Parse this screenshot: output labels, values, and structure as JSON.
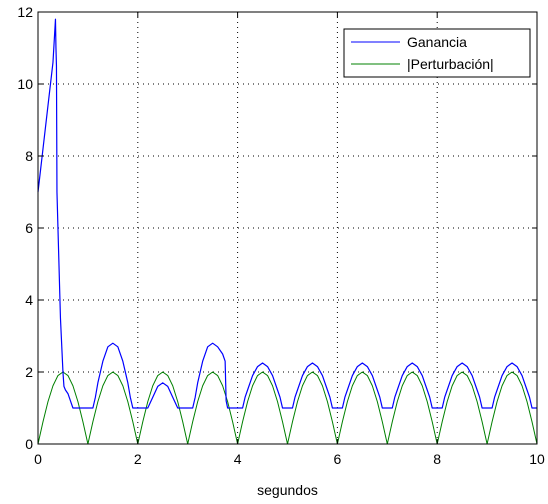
{
  "chart_data": {
    "type": "line",
    "title": "",
    "xlabel": "segundos",
    "ylabel": "",
    "xlim": [
      0,
      10
    ],
    "ylim": [
      0,
      12
    ],
    "x_ticks": [
      "0",
      "2",
      "4",
      "6",
      "8",
      "10"
    ],
    "y_ticks": [
      "0",
      "2",
      "4",
      "6",
      "8",
      "10",
      "12"
    ],
    "grid": true,
    "legend_position": "top-right",
    "series": [
      {
        "name": "Ganancia",
        "color": "#0000ff",
        "x": [
          0,
          0.1,
          0.2,
          0.3,
          0.35,
          0.36,
          0.37,
          0.38,
          0.45,
          0.5,
          0.52,
          0.55,
          0.6,
          0.65,
          0.7,
          0.75,
          0.8,
          0.9,
          1.0,
          1.1,
          1.15,
          1.2,
          1.3,
          1.4,
          1.5,
          1.6,
          1.7,
          1.8,
          1.85,
          1.9,
          2.0,
          2.1,
          2.15,
          2.2,
          2.3,
          2.4,
          2.5,
          2.6,
          2.7,
          2.8,
          2.85,
          2.9,
          3.0,
          3.1,
          3.15,
          3.2,
          3.3,
          3.4,
          3.5,
          3.6,
          3.7,
          3.75,
          3.77,
          3.8,
          3.9,
          4.0,
          4.1,
          4.15,
          4.2,
          4.3,
          4.4,
          4.5,
          4.6,
          4.7,
          4.8,
          4.85,
          4.9,
          5.0,
          5.1,
          5.15,
          5.2,
          5.3,
          5.4,
          5.5,
          5.6,
          5.7,
          5.8,
          5.85,
          5.9,
          6.0,
          6.1,
          6.15,
          6.2,
          6.3,
          6.4,
          6.5,
          6.6,
          6.7,
          6.8,
          6.85,
          6.9,
          7.0,
          7.1,
          7.15,
          7.2,
          7.3,
          7.4,
          7.5,
          7.6,
          7.7,
          7.8,
          7.85,
          7.9,
          8.0,
          8.1,
          8.15,
          8.2,
          8.3,
          8.4,
          8.5,
          8.6,
          8.7,
          8.8,
          8.85,
          8.9,
          9.0,
          9.1,
          9.15,
          9.2,
          9.3,
          9.4,
          9.5,
          9.6,
          9.7,
          9.8,
          9.85,
          9.9,
          10.0
        ],
        "y": [
          7.0,
          8.2,
          9.4,
          10.6,
          11.8,
          11.0,
          10.5,
          7.0,
          3.5,
          2.0,
          1.6,
          1.5,
          1.4,
          1.2,
          1.0,
          1.0,
          1.0,
          1.0,
          1.0,
          1.0,
          1.3,
          1.7,
          2.3,
          2.7,
          2.8,
          2.7,
          2.3,
          1.7,
          1.3,
          1.0,
          1.0,
          1.0,
          1.0,
          1.0,
          1.3,
          1.6,
          1.7,
          1.6,
          1.3,
          1.0,
          1.0,
          1.0,
          1.0,
          1.0,
          1.3,
          1.7,
          2.3,
          2.7,
          2.8,
          2.7,
          2.5,
          2.3,
          1.2,
          1.0,
          1.0,
          1.0,
          1.0,
          1.3,
          1.5,
          1.9,
          2.15,
          2.25,
          2.15,
          1.9,
          1.5,
          1.3,
          1.0,
          1.0,
          1.0,
          1.3,
          1.5,
          1.9,
          2.15,
          2.25,
          2.15,
          1.9,
          1.5,
          1.3,
          1.0,
          1.0,
          1.0,
          1.3,
          1.5,
          1.9,
          2.15,
          2.25,
          2.15,
          1.9,
          1.5,
          1.3,
          1.0,
          1.0,
          1.0,
          1.3,
          1.5,
          1.9,
          2.15,
          2.25,
          2.15,
          1.9,
          1.5,
          1.3,
          1.0,
          1.0,
          1.0,
          1.3,
          1.5,
          1.9,
          2.15,
          2.25,
          2.15,
          1.9,
          1.5,
          1.3,
          1.0,
          1.0,
          1.0,
          1.3,
          1.5,
          1.9,
          2.15,
          2.25,
          2.15,
          1.9,
          1.5,
          1.3,
          1.0,
          1.0
        ]
      },
      {
        "name": "|Perturbación|",
        "color": "#008000",
        "x": [
          0,
          0.1,
          0.2,
          0.3,
          0.4,
          0.5,
          0.6,
          0.7,
          0.8,
          0.9,
          1.0,
          1.1,
          1.2,
          1.3,
          1.4,
          1.5,
          1.6,
          1.7,
          1.8,
          1.9,
          2.0,
          2.1,
          2.2,
          2.3,
          2.4,
          2.5,
          2.6,
          2.7,
          2.8,
          2.9,
          3.0,
          3.1,
          3.2,
          3.3,
          3.4,
          3.5,
          3.6,
          3.7,
          3.8,
          3.9,
          4.0,
          4.1,
          4.2,
          4.3,
          4.4,
          4.5,
          4.6,
          4.7,
          4.8,
          4.9,
          5.0,
          5.1,
          5.2,
          5.3,
          5.4,
          5.5,
          5.6,
          5.7,
          5.8,
          5.9,
          6.0,
          6.1,
          6.2,
          6.3,
          6.4,
          6.5,
          6.6,
          6.7,
          6.8,
          6.9,
          7.0,
          7.1,
          7.2,
          7.3,
          7.4,
          7.5,
          7.6,
          7.7,
          7.8,
          7.9,
          8.0,
          8.1,
          8.2,
          8.3,
          8.4,
          8.5,
          8.6,
          8.7,
          8.8,
          8.9,
          9.0,
          9.1,
          9.2,
          9.3,
          9.4,
          9.5,
          9.6,
          9.7,
          9.8,
          9.9,
          10.0
        ],
        "y": [
          0,
          0.618,
          1.176,
          1.618,
          1.902,
          2.0,
          1.902,
          1.618,
          1.176,
          0.618,
          0,
          0.618,
          1.176,
          1.618,
          1.902,
          2.0,
          1.902,
          1.618,
          1.176,
          0.618,
          0,
          0.618,
          1.176,
          1.618,
          1.902,
          2.0,
          1.902,
          1.618,
          1.176,
          0.618,
          0,
          0.618,
          1.176,
          1.618,
          1.902,
          2.0,
          1.902,
          1.618,
          1.176,
          0.618,
          0,
          0.618,
          1.176,
          1.618,
          1.902,
          2.0,
          1.902,
          1.618,
          1.176,
          0.618,
          0,
          0.618,
          1.176,
          1.618,
          1.902,
          2.0,
          1.902,
          1.618,
          1.176,
          0.618,
          0,
          0.618,
          1.176,
          1.618,
          1.902,
          2.0,
          1.902,
          1.618,
          1.176,
          0.618,
          0,
          0.618,
          1.176,
          1.618,
          1.902,
          2.0,
          1.902,
          1.618,
          1.176,
          0.618,
          0,
          0.618,
          1.176,
          1.618,
          1.902,
          2.0,
          1.902,
          1.618,
          1.176,
          0.618,
          0,
          0.618,
          1.176,
          1.618,
          1.902,
          2.0,
          1.902,
          1.618,
          1.176,
          0.618,
          0
        ]
      }
    ]
  }
}
